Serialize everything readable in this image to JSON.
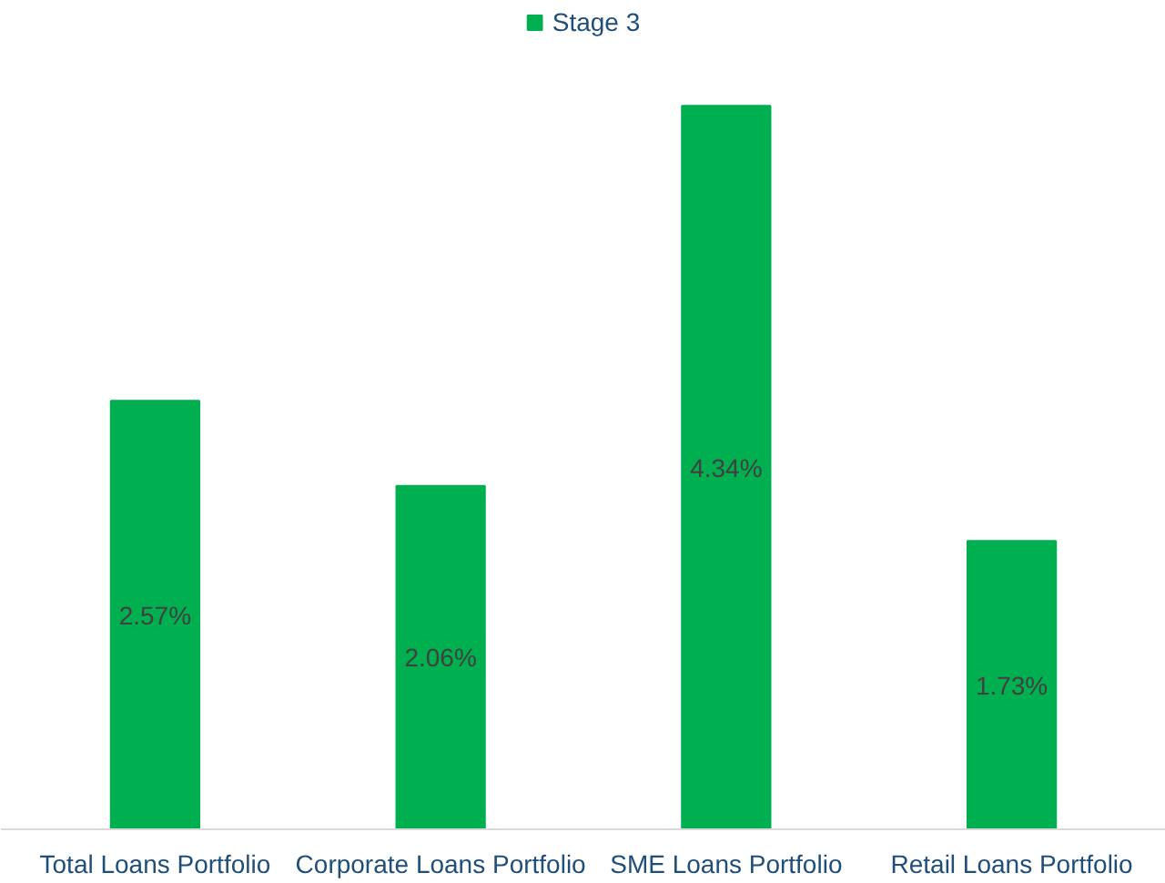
{
  "chart_data": {
    "type": "bar",
    "categories": [
      "Total Loans Portfolio",
      "Corporate Loans Portfolio",
      "SME Loans Portfolio",
      "Retail Loans Portfolio"
    ],
    "series": [
      {
        "name": "Stage 3",
        "color": "#00b050",
        "values": [
          2.57,
          2.06,
          4.34,
          1.73
        ],
        "value_labels": [
          "2.57%",
          "2.06%",
          "4.34%",
          "1.73%"
        ]
      }
    ],
    "legend": "top",
    "grid": false,
    "tick_labels": "x"
  }
}
